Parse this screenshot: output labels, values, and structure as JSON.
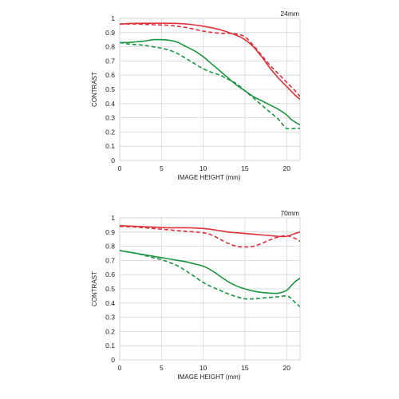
{
  "chart_data": [
    {
      "type": "line",
      "title": "24mm",
      "xlabel": "IMAGE HEIGHT (mm)",
      "ylabel": "CONTRAST",
      "xlim": [
        0,
        21.6
      ],
      "ylim": [
        0,
        1
      ],
      "xticks": [
        "0",
        "5",
        "10",
        "15",
        "20"
      ],
      "yticks": [
        "0",
        "0.1",
        "0.2",
        "0.3",
        "0.4",
        "0.5",
        "0.6",
        "0.7",
        "0.8",
        "0.9",
        "1"
      ],
      "grid": true,
      "series": [
        {
          "color": "#e0303a",
          "dash": false,
          "x": [
            0,
            2,
            4,
            6,
            8,
            10,
            12,
            14,
            15,
            16,
            17,
            18,
            19,
            20,
            21,
            21.6
          ],
          "y": [
            0.96,
            0.965,
            0.965,
            0.965,
            0.96,
            0.945,
            0.92,
            0.88,
            0.85,
            0.8,
            0.73,
            0.65,
            0.58,
            0.52,
            0.46,
            0.43
          ]
        },
        {
          "color": "#e0303a",
          "dash": true,
          "x": [
            0,
            2,
            4,
            6,
            8,
            10,
            12,
            13,
            14,
            15,
            16,
            17,
            18,
            19,
            20,
            21,
            21.6
          ],
          "y": [
            0.96,
            0.96,
            0.955,
            0.95,
            0.935,
            0.91,
            0.895,
            0.895,
            0.89,
            0.87,
            0.81,
            0.74,
            0.67,
            0.61,
            0.55,
            0.49,
            0.45
          ]
        },
        {
          "color": "#1a9641",
          "dash": false,
          "x": [
            0,
            1,
            2,
            3,
            4,
            5,
            6,
            7,
            8,
            9,
            10,
            11,
            12,
            13,
            14,
            15,
            16,
            17,
            18,
            19,
            20,
            20.5,
            21,
            21.6
          ],
          "y": [
            0.83,
            0.83,
            0.835,
            0.84,
            0.85,
            0.85,
            0.845,
            0.83,
            0.8,
            0.77,
            0.73,
            0.68,
            0.63,
            0.58,
            0.53,
            0.49,
            0.45,
            0.42,
            0.39,
            0.36,
            0.32,
            0.29,
            0.27,
            0.25
          ]
        },
        {
          "color": "#1a9641",
          "dash": true,
          "x": [
            0,
            1,
            2,
            3,
            4,
            5,
            6,
            7,
            8,
            9,
            10,
            11,
            12,
            13,
            14,
            15,
            16,
            17,
            18,
            19,
            19.5,
            20,
            21,
            21.6
          ],
          "y": [
            0.83,
            0.82,
            0.815,
            0.81,
            0.8,
            0.79,
            0.775,
            0.75,
            0.715,
            0.68,
            0.645,
            0.62,
            0.6,
            0.57,
            0.54,
            0.49,
            0.44,
            0.39,
            0.34,
            0.29,
            0.255,
            0.225,
            0.225,
            0.225
          ]
        }
      ]
    },
    {
      "type": "line",
      "title": "70mm",
      "xlabel": "IMAGE HEIGHT (mm)",
      "ylabel": "CONTRAST",
      "xlim": [
        0,
        21.6
      ],
      "ylim": [
        0,
        1
      ],
      "xticks": [
        "0",
        "5",
        "10",
        "15",
        "20"
      ],
      "yticks": [
        "0",
        "0.1",
        "0.2",
        "0.3",
        "0.4",
        "0.5",
        "0.6",
        "0.7",
        "0.8",
        "0.9",
        "1"
      ],
      "grid": true,
      "series": [
        {
          "color": "#e0303a",
          "dash": false,
          "x": [
            0,
            2,
            4,
            6,
            8,
            10,
            12,
            13,
            14,
            15,
            16,
            17,
            18,
            19,
            20,
            21,
            21.6
          ],
          "y": [
            0.945,
            0.94,
            0.935,
            0.93,
            0.93,
            0.925,
            0.91,
            0.9,
            0.895,
            0.89,
            0.885,
            0.88,
            0.875,
            0.87,
            0.87,
            0.89,
            0.9
          ]
        },
        {
          "color": "#e0303a",
          "dash": true,
          "x": [
            0,
            2,
            4,
            6,
            8,
            10,
            11,
            12,
            13,
            14,
            15,
            16,
            17,
            18,
            19,
            20,
            21,
            21.6
          ],
          "y": [
            0.94,
            0.935,
            0.925,
            0.915,
            0.905,
            0.895,
            0.88,
            0.85,
            0.82,
            0.8,
            0.795,
            0.8,
            0.82,
            0.845,
            0.865,
            0.875,
            0.855,
            0.835
          ]
        },
        {
          "color": "#1a9641",
          "dash": false,
          "x": [
            0,
            1,
            2,
            3,
            4,
            5,
            6,
            7,
            8,
            9,
            10,
            11,
            12,
            13,
            14,
            15,
            16,
            17,
            18,
            19,
            20,
            20.5,
            21,
            21.6
          ],
          "y": [
            0.77,
            0.76,
            0.75,
            0.74,
            0.73,
            0.72,
            0.71,
            0.7,
            0.69,
            0.675,
            0.66,
            0.63,
            0.59,
            0.55,
            0.52,
            0.5,
            0.485,
            0.475,
            0.47,
            0.47,
            0.49,
            0.52,
            0.55,
            0.575
          ]
        },
        {
          "color": "#1a9641",
          "dash": true,
          "x": [
            0,
            1,
            2,
            3,
            4,
            5,
            6,
            7,
            8,
            9,
            10,
            11,
            12,
            13,
            14,
            15,
            16,
            17,
            18,
            19,
            20,
            20.5,
            21,
            21.6
          ],
          "y": [
            0.77,
            0.76,
            0.75,
            0.735,
            0.72,
            0.705,
            0.685,
            0.66,
            0.625,
            0.585,
            0.545,
            0.515,
            0.49,
            0.465,
            0.445,
            0.43,
            0.43,
            0.435,
            0.44,
            0.445,
            0.45,
            0.435,
            0.405,
            0.375
          ]
        }
      ]
    }
  ]
}
